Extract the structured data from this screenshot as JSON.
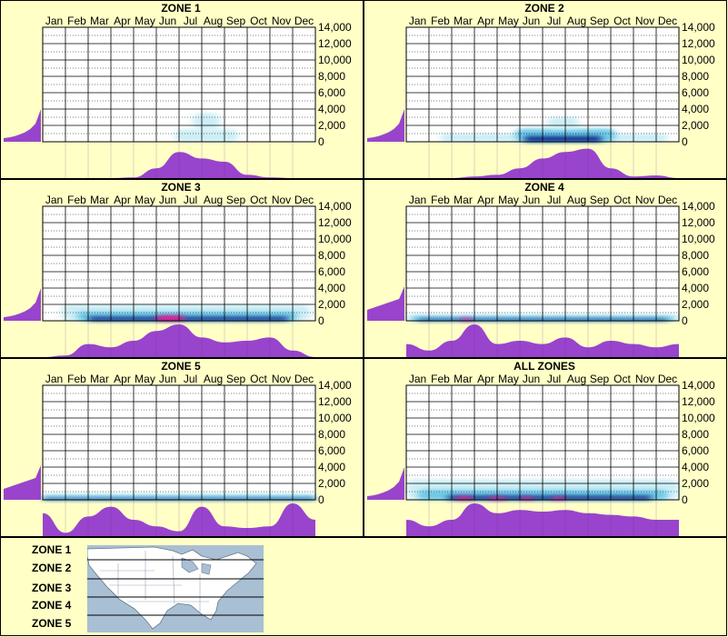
{
  "colors": {
    "background": "#ffffc6",
    "fill_purple": "#9944cc",
    "heat_light": "#cdeef6",
    "heat_mid": "#6ec9e6",
    "heat_dark": "#0b2e8a",
    "heat_peak": "#ff1493",
    "map_water": "#a9bfd4",
    "map_land": "#ffffff"
  },
  "chart_data": [
    {
      "type": "heatmap",
      "title": "ZONE 1",
      "categories": [
        "Jan",
        "Feb",
        "Mar",
        "Apr",
        "May",
        "Jun",
        "Jul",
        "Aug",
        "Sep",
        "Oct",
        "Nov",
        "Dec"
      ],
      "ylim": [
        0,
        14000
      ],
      "yticks": [
        "14,000",
        "12,000",
        "10,000",
        "8,000",
        "6,000",
        "4,000",
        "2,000",
        "0"
      ],
      "month_profile": [
        0,
        0,
        0,
        0,
        0.02,
        0.3,
        0.8,
        0.6,
        0.5,
        0.1,
        0.02,
        0,
        0
      ],
      "elevation_profile": [
        0.1,
        0.12,
        0.15,
        0.2,
        0.26,
        0.35,
        0.5,
        0.9
      ],
      "heat_bands": [
        {
          "x0": 5.8,
          "x1": 8.6,
          "y0": 0,
          "y1": 1500,
          "level": "light"
        },
        {
          "x0": 6.6,
          "x1": 7.8,
          "y0": 1500,
          "y1": 3500,
          "level": "light"
        }
      ]
    },
    {
      "type": "heatmap",
      "title": "ZONE 2",
      "categories": [
        "Jan",
        "Feb",
        "Mar",
        "Apr",
        "May",
        "Jun",
        "Jul",
        "Aug",
        "Sep",
        "Oct",
        "Nov",
        "Dec"
      ],
      "ylim": [
        0,
        14000
      ],
      "yticks": [
        "14,000",
        "12,000",
        "10,000",
        "8,000",
        "6,000",
        "4,000",
        "2,000",
        "0"
      ],
      "month_profile": [
        0,
        0,
        0,
        0.05,
        0.1,
        0.3,
        0.6,
        0.8,
        0.9,
        0.3,
        0.05,
        0.08,
        0
      ],
      "elevation_profile": [
        0.1,
        0.12,
        0.15,
        0.2,
        0.26,
        0.35,
        0.5,
        0.9
      ],
      "heat_bands": [
        {
          "x0": 1.5,
          "x1": 11.5,
          "y0": 0,
          "y1": 1000,
          "level": "light"
        },
        {
          "x0": 4.8,
          "x1": 9.2,
          "y0": 0,
          "y1": 1600,
          "level": "mid"
        },
        {
          "x0": 5.2,
          "x1": 8.6,
          "y0": 0,
          "y1": 700,
          "level": "dark"
        },
        {
          "x0": 6.2,
          "x1": 7.6,
          "y0": 1600,
          "y1": 3000,
          "level": "light"
        }
      ]
    },
    {
      "type": "heatmap",
      "title": "ZONE 3",
      "categories": [
        "Jan",
        "Feb",
        "Mar",
        "Apr",
        "May",
        "Jun",
        "Jul",
        "Aug",
        "Sep",
        "Oct",
        "Nov",
        "Dec"
      ],
      "ylim": [
        0,
        14000
      ],
      "yticks": [
        "14,000",
        "12,000",
        "10,000",
        "8,000",
        "6,000",
        "4,000",
        "2,000",
        "0"
      ],
      "month_profile": [
        0,
        0.05,
        0.4,
        0.3,
        0.5,
        0.8,
        1.0,
        0.6,
        0.45,
        0.5,
        0.6,
        0.2,
        0
      ],
      "elevation_profile": [
        0.1,
        0.12,
        0.15,
        0.2,
        0.26,
        0.35,
        0.5,
        0.9
      ],
      "heat_bands": [
        {
          "x0": 0.8,
          "x1": 11.8,
          "y0": 0,
          "y1": 2000,
          "level": "light"
        },
        {
          "x0": 1.5,
          "x1": 11.2,
          "y0": 0,
          "y1": 1100,
          "level": "mid"
        },
        {
          "x0": 2.0,
          "x1": 10.8,
          "y0": 0,
          "y1": 500,
          "level": "dark"
        },
        {
          "x0": 5.0,
          "x1": 6.2,
          "y0": 0,
          "y1": 600,
          "level": "peak"
        }
      ]
    },
    {
      "type": "heatmap",
      "title": "ZONE 4",
      "categories": [
        "Jan",
        "Feb",
        "Mar",
        "Apr",
        "May",
        "Jun",
        "Jul",
        "Aug",
        "Sep",
        "Oct",
        "Nov",
        "Dec"
      ],
      "ylim": [
        0,
        14000
      ],
      "yticks": [
        "14,000",
        "12,000",
        "10,000",
        "8,000",
        "6,000",
        "4,000",
        "2,000",
        "0"
      ],
      "month_profile": [
        0.4,
        0.2,
        0.5,
        1.0,
        0.4,
        0.5,
        0.4,
        0.6,
        0.3,
        0.5,
        0.4,
        0.3,
        0.4
      ],
      "elevation_profile": [
        0.3,
        0.35,
        0.4,
        0.45,
        0.5,
        0.55,
        0.6,
        0.95
      ],
      "heat_bands": [
        {
          "x0": 0,
          "x1": 12,
          "y0": 0,
          "y1": 800,
          "level": "light"
        },
        {
          "x0": 0.2,
          "x1": 11.8,
          "y0": 0,
          "y1": 500,
          "level": "mid"
        },
        {
          "x0": 0.5,
          "x1": 11.5,
          "y0": 0,
          "y1": 250,
          "level": "dark"
        },
        {
          "x0": 2.4,
          "x1": 2.9,
          "y0": 0,
          "y1": 300,
          "level": "peak"
        }
      ]
    },
    {
      "type": "heatmap",
      "title": "ZONE 5",
      "categories": [
        "Jan",
        "Feb",
        "Mar",
        "Apr",
        "May",
        "Jun",
        "Jul",
        "Aug",
        "Sep",
        "Oct",
        "Nov",
        "Dec"
      ],
      "ylim": [
        0,
        14000
      ],
      "yticks": [
        "14,000",
        "12,000",
        "10,000",
        "8,000",
        "6,000",
        "4,000",
        "2,000",
        "0"
      ],
      "month_profile": [
        0.7,
        0.1,
        0.6,
        0.9,
        0.5,
        0.3,
        0.15,
        0.9,
        0.3,
        0.25,
        0.3,
        1.0,
        0.5
      ],
      "elevation_profile": [
        0.3,
        0.35,
        0.4,
        0.45,
        0.5,
        0.55,
        0.6,
        0.95
      ],
      "heat_bands": [
        {
          "x0": 0,
          "x1": 12,
          "y0": 0,
          "y1": 800,
          "level": "light"
        },
        {
          "x0": 0,
          "x1": 12,
          "y0": 0,
          "y1": 450,
          "level": "mid"
        },
        {
          "x0": 0,
          "x1": 12,
          "y0": 0,
          "y1": 200,
          "level": "dark"
        }
      ]
    },
    {
      "type": "heatmap",
      "title": "ALL ZONES",
      "categories": [
        "Jan",
        "Feb",
        "Mar",
        "Apr",
        "May",
        "Jun",
        "Jul",
        "Aug",
        "Sep",
        "Oct",
        "Nov",
        "Dec"
      ],
      "ylim": [
        0,
        14000
      ],
      "yticks": [
        "14,000",
        "12,000",
        "10,000",
        "8,000",
        "6,000",
        "4,000",
        "2,000",
        "0"
      ],
      "month_profile": [
        0.5,
        0.3,
        0.5,
        1.0,
        0.7,
        0.8,
        0.75,
        0.8,
        0.7,
        0.65,
        0.6,
        0.5,
        0.5
      ],
      "elevation_profile": [
        0.1,
        0.12,
        0.15,
        0.2,
        0.26,
        0.35,
        0.5,
        0.9
      ],
      "heat_bands": [
        {
          "x0": 0,
          "x1": 12,
          "y0": 0,
          "y1": 2500,
          "level": "light"
        },
        {
          "x0": 0.5,
          "x1": 11.5,
          "y0": 0,
          "y1": 1200,
          "level": "mid"
        },
        {
          "x0": 1.8,
          "x1": 10.8,
          "y0": 0,
          "y1": 500,
          "level": "dark"
        },
        {
          "x0": 2.2,
          "x1": 2.9,
          "y0": 0,
          "y1": 400,
          "level": "peak"
        },
        {
          "x0": 3.6,
          "x1": 4.4,
          "y0": 0,
          "y1": 300,
          "level": "peak"
        },
        {
          "x0": 5.0,
          "x1": 5.6,
          "y0": 0,
          "y1": 300,
          "level": "peak"
        },
        {
          "x0": 6.4,
          "x1": 7.0,
          "y0": 0,
          "y1": 300,
          "level": "peak"
        }
      ]
    }
  ],
  "legend": {
    "zones": [
      "ZONE 1",
      "ZONE 2",
      "ZONE 3",
      "ZONE 4",
      "ZONE 5"
    ],
    "map_icon": "north-america-map-icon"
  }
}
